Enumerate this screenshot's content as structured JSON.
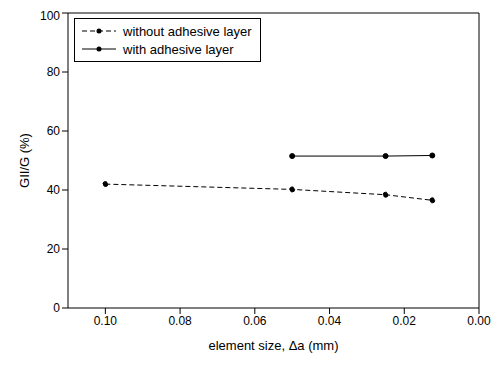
{
  "chart_data": {
    "type": "line",
    "x_label": "element size, Δa (mm)",
    "y_label": "GII/G (%)",
    "xlim": [
      0.11,
      0
    ],
    "xticks": [
      {
        "value": 0.1,
        "label": "0.10"
      },
      0.08,
      0.06,
      0.04,
      0.02,
      {
        "value": 0,
        "label": "0.00"
      }
    ],
    "ylim": [
      0,
      100
    ],
    "yticks": [
      0,
      20,
      40,
      60,
      80,
      100
    ],
    "grid": false,
    "legend": "upper left",
    "series": [
      {
        "name": "without adhesive layer",
        "color": "#000000",
        "marker": "circle",
        "line_style": "dashed",
        "x": [
          0.1,
          0.05,
          0.025,
          0.0125
        ],
        "values": [
          42,
          40.2,
          38.4,
          36.5
        ]
      },
      {
        "name": "with adhesive layer",
        "color": "#000000",
        "marker": "circle",
        "line_style": "solid",
        "x": [
          0.05,
          0.025,
          0.0125
        ],
        "values": [
          51.5,
          51.5,
          51.7
        ]
      }
    ]
  }
}
